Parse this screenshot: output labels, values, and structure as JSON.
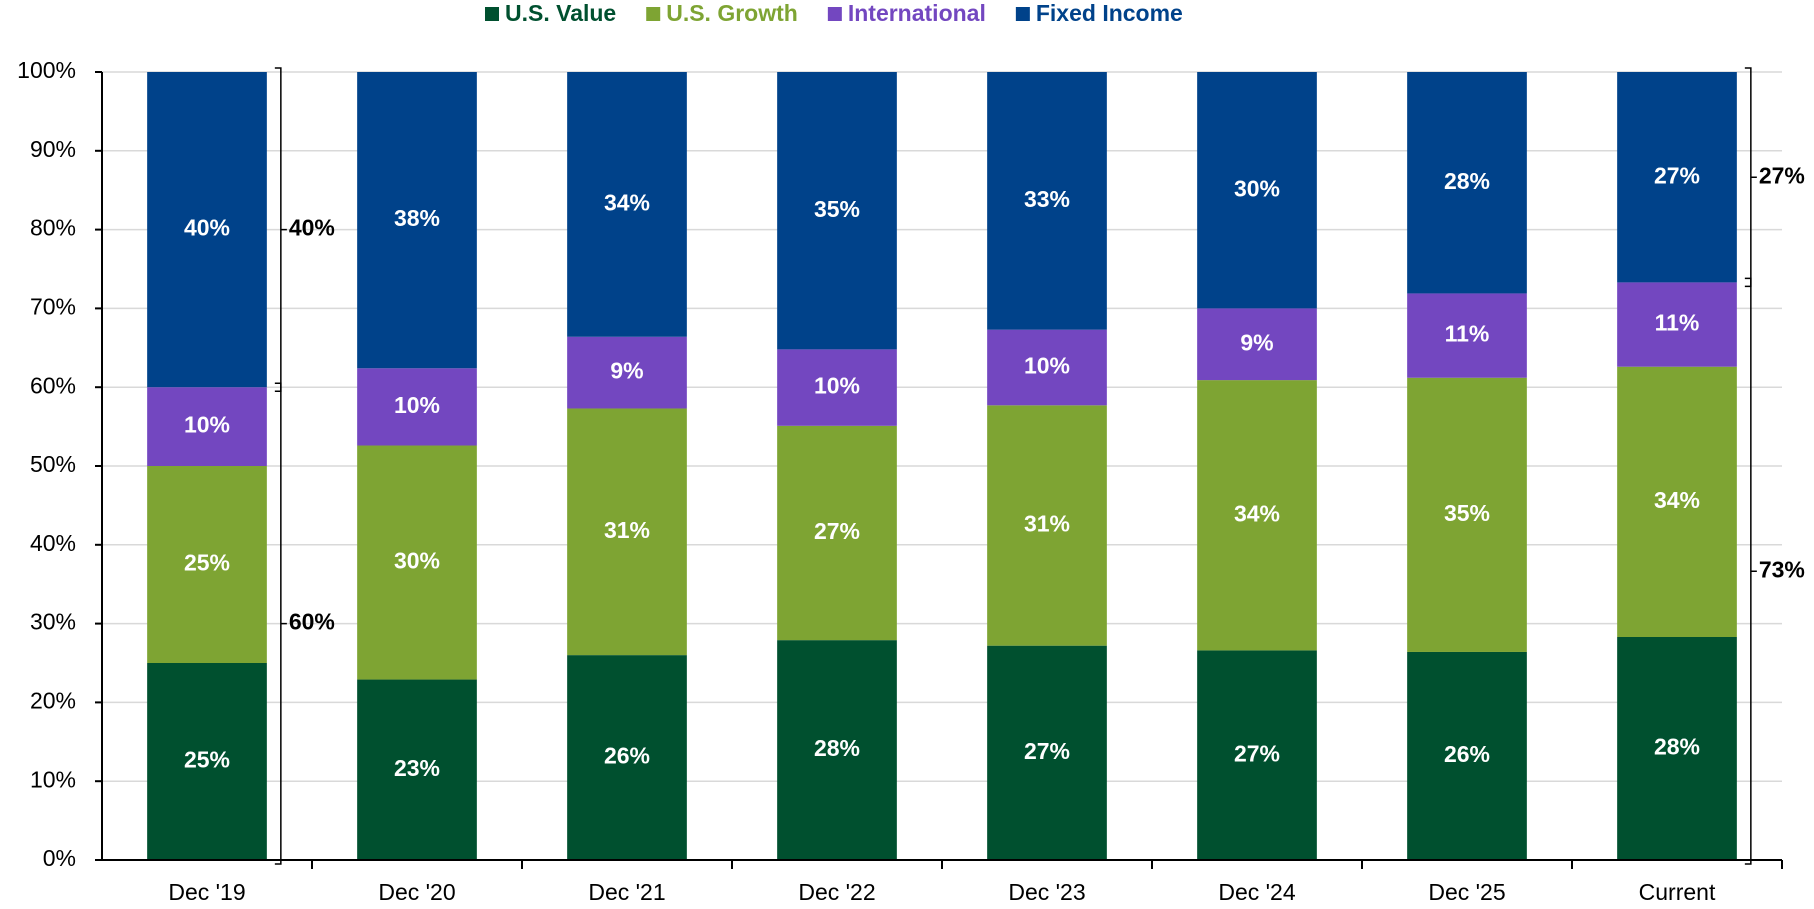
{
  "chart_data": {
    "type": "stacked_bar",
    "categories": [
      "Dec '19",
      "Dec '20",
      "Dec '21",
      "Dec '22",
      "Dec '23",
      "Dec '24",
      "Dec '25",
      "Current"
    ],
    "series": [
      {
        "name": "U.S. Value",
        "color": "#00502f",
        "values": [
          25,
          22.9,
          26.0,
          27.9,
          27.2,
          26.6,
          26.4,
          28.3
        ],
        "value_labels": [
          "25%",
          "23%",
          "26%",
          "28%",
          "27%",
          "27%",
          "26%",
          "28%"
        ]
      },
      {
        "name": "U.S. Growth",
        "color": "#7ea433",
        "values": [
          25,
          29.7,
          31.3,
          27.2,
          30.5,
          34.3,
          34.8,
          34.3
        ],
        "value_labels": [
          "25%",
          "30%",
          "31%",
          "27%",
          "31%",
          "34%",
          "35%",
          "34%"
        ]
      },
      {
        "name": "International",
        "color": "#7347c0",
        "values": [
          10,
          9.8,
          9.1,
          9.7,
          9.6,
          9.1,
          10.7,
          10.7
        ],
        "value_labels": [
          "10%",
          "10%",
          "9%",
          "10%",
          "10%",
          "9%",
          "11%",
          "11%"
        ]
      },
      {
        "name": "Fixed Income",
        "color": "#00428a",
        "values": [
          40,
          37.6,
          33.6,
          35.2,
          32.7,
          30.0,
          28.1,
          26.7
        ],
        "value_labels": [
          "40%",
          "38%",
          "34%",
          "35%",
          "33%",
          "30%",
          "28%",
          "27%"
        ]
      }
    ],
    "annotations": [
      "40%",
      "60%",
      "27%",
      "73%"
    ],
    "ylim": [
      0,
      100
    ],
    "yticks": [
      {
        "value": 0,
        "label": "0%"
      },
      {
        "value": 10,
        "label": "10%"
      },
      {
        "value": 20,
        "label": "20%"
      },
      {
        "value": 30,
        "label": "30%"
      },
      {
        "value": 40,
        "label": "40%"
      },
      {
        "value": 50,
        "label": "50%"
      },
      {
        "value": 60,
        "label": "60%"
      },
      {
        "value": 70,
        "label": "70%"
      },
      {
        "value": 80,
        "label": "80%"
      },
      {
        "value": 90,
        "label": "90%"
      },
      {
        "value": 100,
        "label": "100%"
      }
    ],
    "grid": true,
    "legend": "top"
  }
}
